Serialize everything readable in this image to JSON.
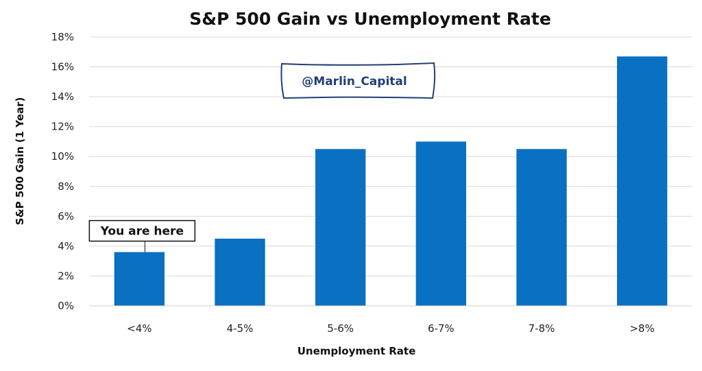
{
  "chart_data": {
    "type": "bar",
    "title": "S&P 500 Gain vs Unemployment Rate",
    "xlabel": "Unemployment Rate",
    "ylabel": "S&P 500 Gain (1 Year)",
    "categories": [
      "<4%",
      "4-5%",
      "5-6%",
      "6-7%",
      "7-8%",
      ">8%"
    ],
    "values": [
      3.6,
      4.5,
      10.5,
      11.0,
      10.5,
      16.7
    ],
    "ylim": [
      0,
      18
    ],
    "ytick_step": 2,
    "ytick_suffix": "%",
    "grid": true,
    "bar_color": "#0a70c2",
    "annotation": {
      "text": "You are here",
      "category": "<4%"
    },
    "watermark": {
      "text": "@Marlin_Capital",
      "color": "#1f3e78"
    }
  }
}
